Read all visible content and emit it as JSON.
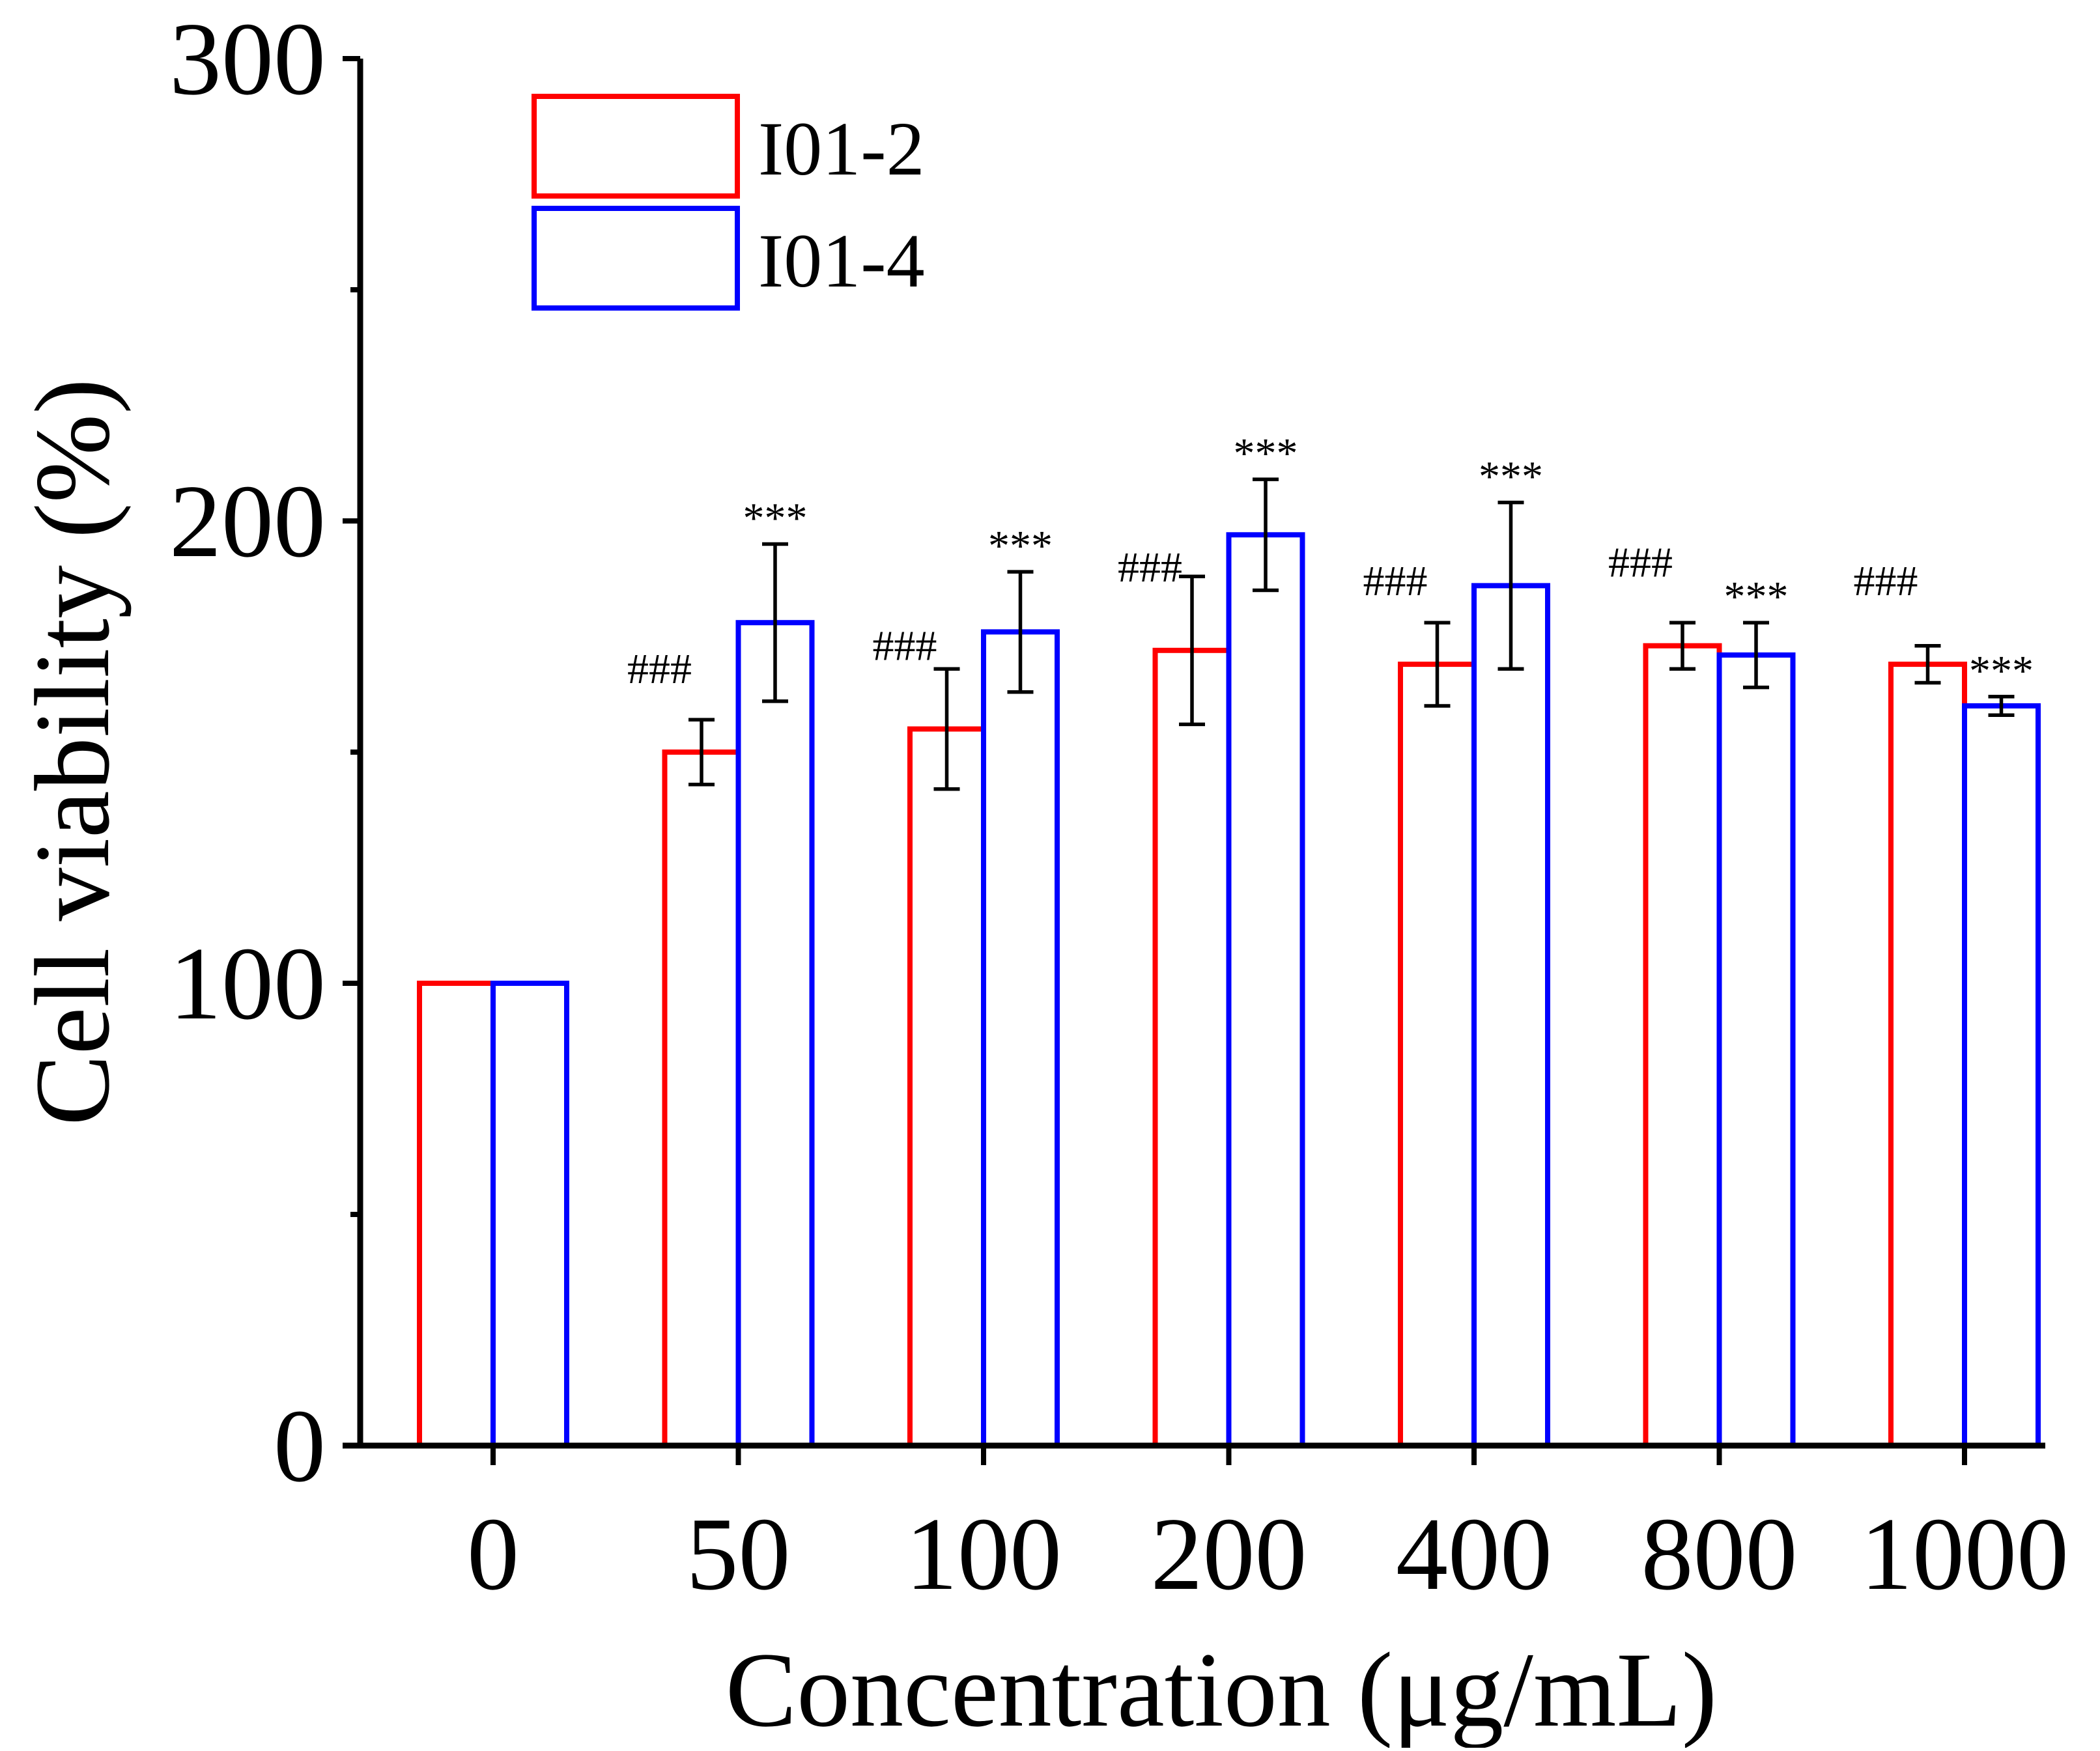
{
  "chart_data": {
    "type": "bar",
    "xlabel": "Concentration (μg/mL)",
    "ylabel": "Cell viability (%)",
    "ylim": [
      0,
      300
    ],
    "yticks": [
      0,
      100,
      200,
      300
    ],
    "categories": [
      "0",
      "50",
      "100",
      "200",
      "400",
      "800",
      "1000"
    ],
    "series": [
      {
        "name": "I01-2",
        "color": "#ff0000",
        "values": [
          100,
          150,
          155,
          172,
          169,
          173,
          169
        ],
        "errors": [
          0,
          7,
          13,
          16,
          9,
          5,
          4
        ],
        "annotations": [
          "",
          "###",
          "###",
          "###",
          "###",
          "###",
          "###"
        ]
      },
      {
        "name": "I01-4",
        "color": "#0000ff",
        "values": [
          100,
          178,
          176,
          197,
          186,
          171,
          160
        ],
        "errors": [
          0,
          17,
          13,
          12,
          18,
          7,
          2
        ],
        "annotations": [
          "",
          "***",
          "***",
          "***",
          "***",
          "***",
          "***"
        ]
      }
    ],
    "legend_position": "top-left",
    "grid": false
  }
}
